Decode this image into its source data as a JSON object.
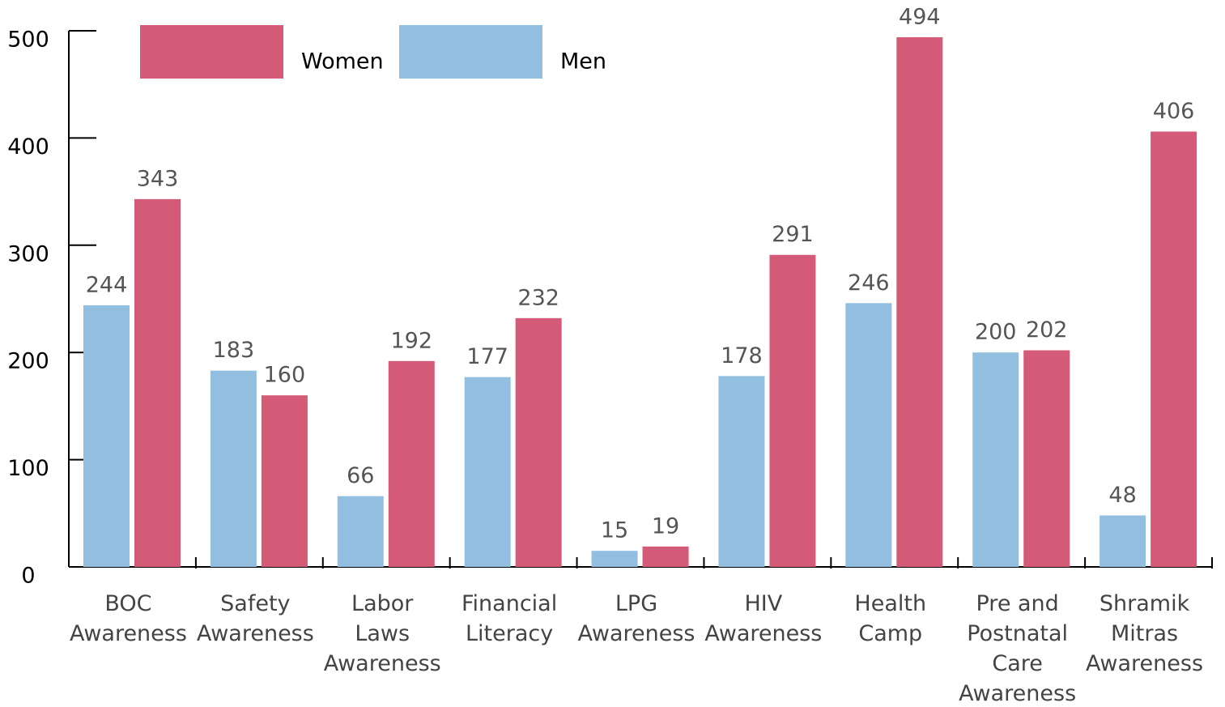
{
  "chart_data": {
    "type": "bar",
    "categories": [
      "BOC\nAwareness",
      "Safety\nAwareness",
      "Labor\nLaws\nAwareness",
      "Financial\nLiteracy",
      "LPG\nAwareness",
      "HIV\nAwareness",
      "Health\nCamp",
      "Pre and\nPostnatal\nCare\nAwareness",
      "Shramik\nMitras\nAwareness"
    ],
    "series": [
      {
        "name": "Women",
        "color": "#d45b77",
        "values": [
          343,
          160,
          192,
          232,
          19,
          291,
          494,
          202,
          406
        ]
      },
      {
        "name": "Men",
        "color": "#92bfe0",
        "values": [
          244,
          183,
          66,
          177,
          15,
          178,
          246,
          200,
          48
        ]
      }
    ],
    "ylim": [
      0,
      500
    ],
    "yticks": [
      0,
      100,
      200,
      300,
      400,
      500
    ],
    "legend": "top-left"
  }
}
